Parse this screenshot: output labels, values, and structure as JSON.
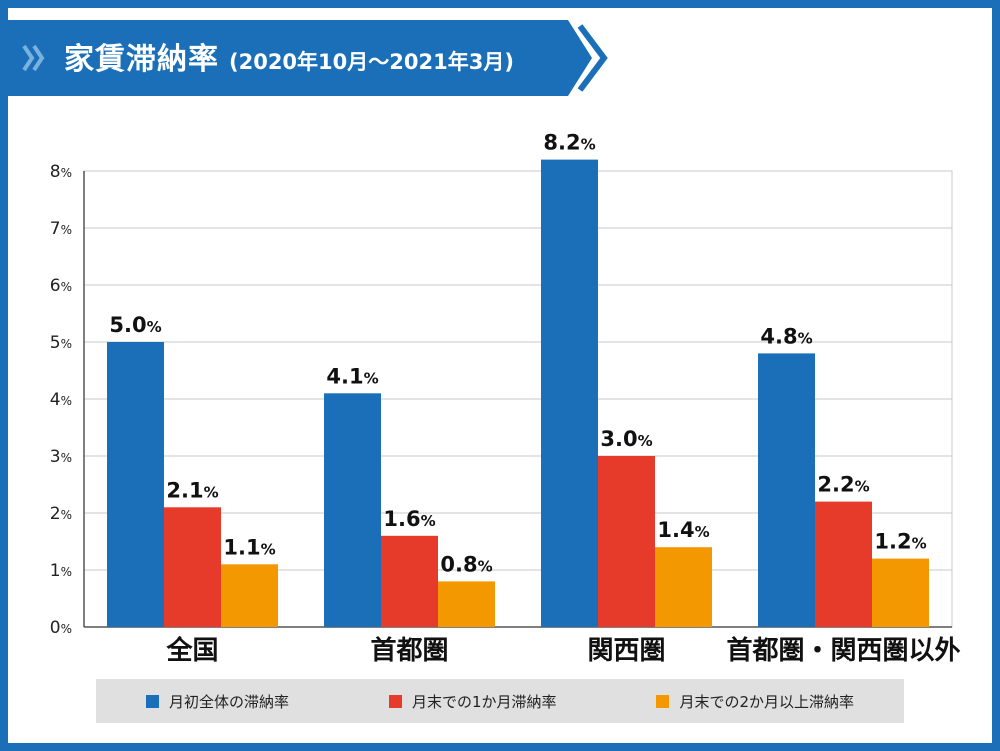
{
  "title": {
    "main": "家賃滞納率",
    "sub": "(2020年10月〜2021年3月)"
  },
  "colors": {
    "frame": "#1a6fb8",
    "banner": "#1a6fb8",
    "chevron": "#7ab2df"
  },
  "chart_data": {
    "type": "bar",
    "categories": [
      "全国",
      "首都圏",
      "関西圏",
      "首都圏・関西圏以外"
    ],
    "series": [
      {
        "name": "月初全体の滞納率",
        "values": [
          5.0,
          4.1,
          8.2,
          4.8
        ],
        "color": "#1a6fb8"
      },
      {
        "name": "月末での1か月滞納率",
        "values": [
          2.1,
          1.6,
          3.0,
          2.2
        ],
        "color": "#e63a2b"
      },
      {
        "name": "月末での2か月以上滞納率",
        "values": [
          1.1,
          0.8,
          1.4,
          1.2
        ],
        "color": "#f39800"
      }
    ],
    "ylim": [
      0,
      8
    ],
    "yticks": [
      "0",
      "1",
      "2",
      "3",
      "4",
      "5",
      "6",
      "7",
      "8"
    ],
    "value_unit": "%",
    "grid": true,
    "legend_position": "bottom"
  }
}
